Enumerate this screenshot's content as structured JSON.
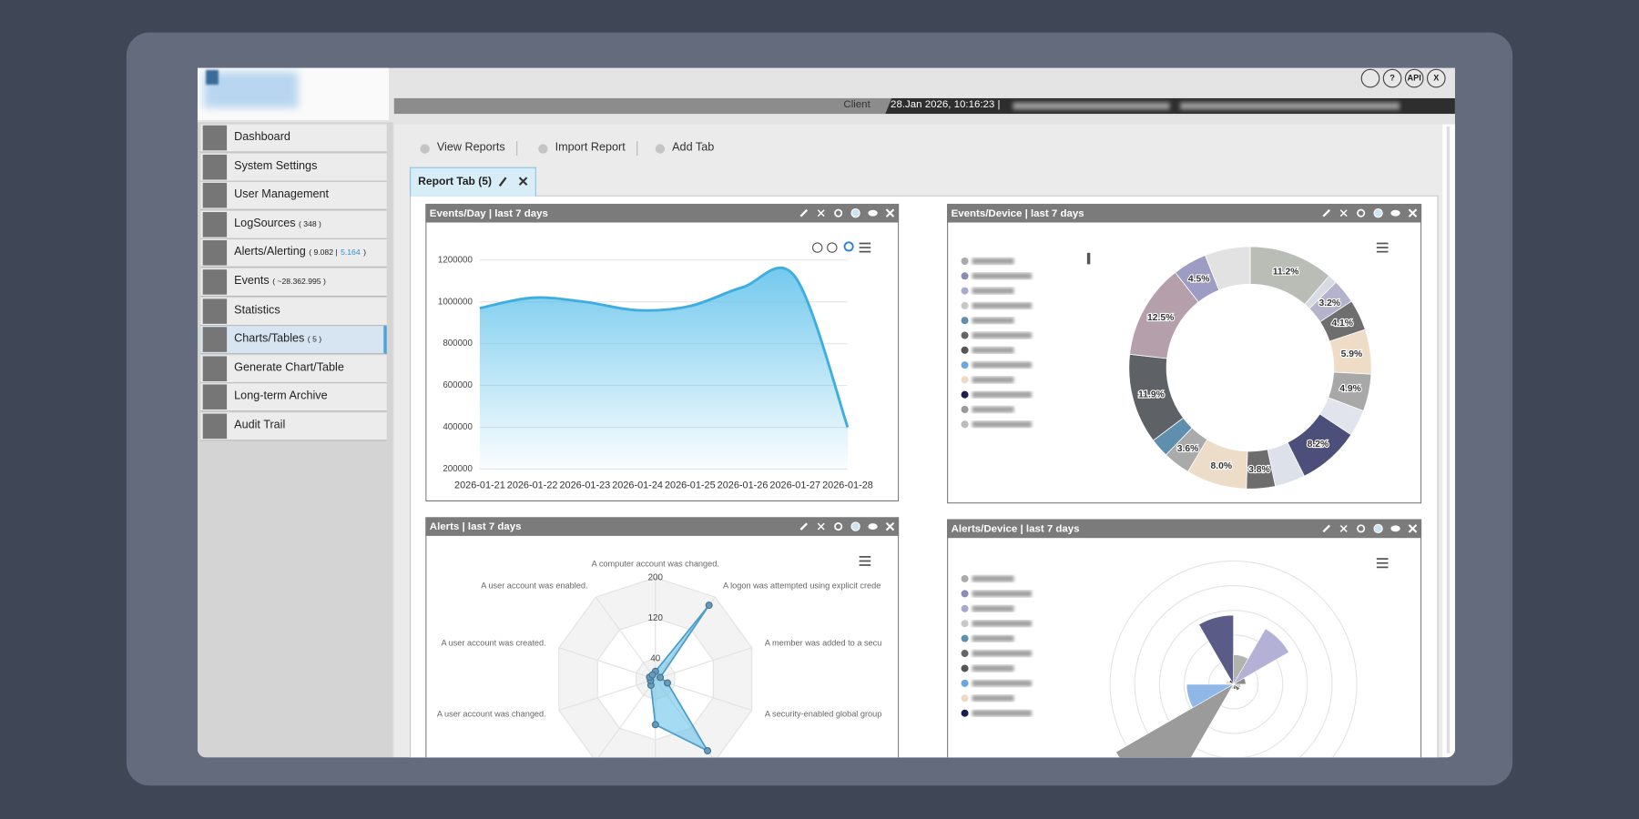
{
  "header": {
    "client_label": "Client",
    "datetime": "28.Jan 2026, 10:16:23 |",
    "icons": [
      "?",
      "API",
      "X"
    ]
  },
  "menu": [
    {
      "label": "Dashboard"
    },
    {
      "label": "System Settings"
    },
    {
      "label": "User Management"
    },
    {
      "label": "LogSources",
      "note": [
        {
          "text": "( 348 )"
        }
      ]
    },
    {
      "label": "Alerts/Alerting",
      "note": [
        {
          "text": "( 9.082 |"
        },
        {
          "text": "5.164",
          "highlight": true
        },
        {
          "text": ")"
        }
      ]
    },
    {
      "label": "Events",
      "note": [
        {
          "text": "( ~28.362.995 )"
        }
      ]
    },
    {
      "label": "Statistics"
    },
    {
      "label": "Charts/Tables",
      "note": [
        {
          "text": "( 5 )"
        }
      ],
      "active": true
    },
    {
      "label": "Generate Chart/Table"
    },
    {
      "label": "Long-term Archive"
    },
    {
      "label": "Audit Trail"
    }
  ],
  "toolbar": [
    "View Reports",
    "Import Report",
    "Add Tab"
  ],
  "tab": "Report Tab (5)",
  "widgets": [
    {
      "title": "Events/Day | last 7 days",
      "chart": {
        "type": "line",
        "x": [
          "2026-01-21",
          "2026-01-22",
          "2026-01-23",
          "2026-01-24",
          "2026-01-25",
          "2026-01-26",
          "2026-01-27",
          "2026-01-28"
        ],
        "values": [
          970000,
          1020000,
          1000000,
          960000,
          980000,
          1070000,
          1120000,
          400000
        ],
        "ylim": [
          200000,
          1200000
        ],
        "yticks": [
          200000,
          400000,
          600000,
          800000,
          1000000,
          1200000
        ],
        "color": "#3eaee0",
        "grid": true
      }
    },
    {
      "title": "Events/Device | last 7 days",
      "chart": {
        "type": "pie",
        "donut": true,
        "values": [
          11.2,
          1.2,
          3.2,
          4.1,
          5.9,
          4.9,
          3.5,
          8.2,
          4.0,
          3.8,
          8.0,
          3.6,
          2.5,
          11.9,
          12.5,
          4.5,
          6.0
        ],
        "value_labels": [
          "11.2%",
          null,
          "3.2%",
          "4.1%",
          "5.9%",
          "4.9%",
          null,
          "8.2%",
          null,
          "3.8%",
          "8.0%",
          "3.6%",
          null,
          "11.9%",
          "12.5%",
          "4.5%",
          null
        ],
        "colors": [
          "#b9bdb5",
          "#d8dbe4",
          "#b5b3cc",
          "#6e6e6e",
          "#efdcc6",
          "#a8a8a8",
          "#e1e4ec",
          "#4b4f79",
          "#dde1ea",
          "#6d6d6d",
          "#ecdcc8",
          "#aaaaaa",
          "#5f8fae",
          "#5e6266",
          "#b59fab",
          "#9d9cc4",
          "#e2e2e2"
        ]
      }
    },
    {
      "title": "Alerts | last 7 days",
      "chart": {
        "type": "radar",
        "categories": [
          "A computer account was changed.",
          "A logon was attempted using explicit crede",
          "A member was added to a secu",
          "A security-enabled global group",
          null,
          null,
          null,
          "A user account was changed.",
          "A user account was created.",
          "A user account was enabled."
        ],
        "values": [
          15,
          180,
          10,
          25,
          175,
          90,
          15,
          10,
          12,
          10
        ],
        "ylim": [
          0,
          200
        ],
        "yticks": [
          40,
          120,
          200
        ],
        "color": "#5bc0eb"
      }
    },
    {
      "title": "Alerts/Device | last 7 days",
      "chart": {
        "type": "polar",
        "values": [
          2.8,
          1.2,
          2.6,
          0.5,
          0.3,
          0.3,
          0.2,
          0.2,
          5.5,
          1.9,
          0.3,
          0.2
        ],
        "colors": [
          "#5a5b86",
          "#b0b4ad",
          "#b3b2d6",
          "#8a8a8a",
          "#c8c8c8",
          "#6e6e6e",
          "#555555",
          "#d0d0d0",
          "#9b9b9b",
          "#8fb8e8",
          "#f0d9c2",
          "#1a1f4f"
        ],
        "ylim": [
          0,
          5
        ]
      }
    }
  ]
}
